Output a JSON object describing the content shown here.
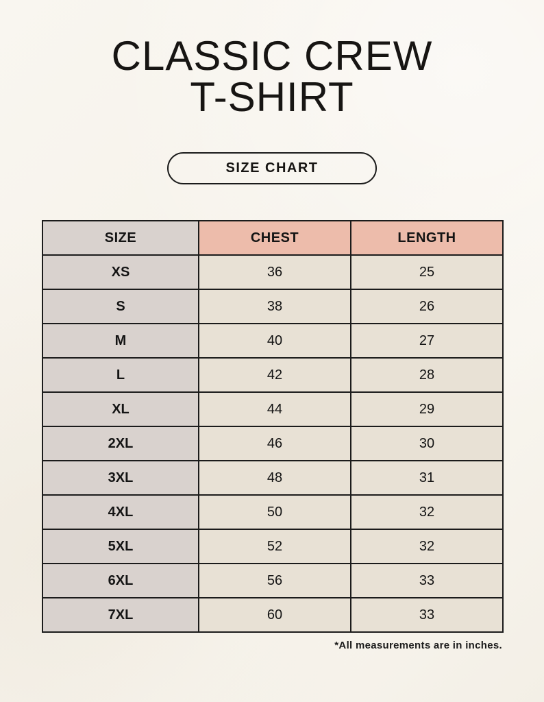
{
  "header": {
    "title_line1": "CLASSIC CREW",
    "title_line2": "T-SHIRT",
    "badge_label": "SIZE CHART"
  },
  "chart_data": {
    "type": "table",
    "title": "CLASSIC CREW T-SHIRT",
    "columns": [
      "SIZE",
      "CHEST",
      "LENGTH"
    ],
    "rows": [
      [
        "XS",
        "36",
        "25"
      ],
      [
        "S",
        "38",
        "26"
      ],
      [
        "M",
        "40",
        "27"
      ],
      [
        "L",
        "42",
        "28"
      ],
      [
        "XL",
        "44",
        "29"
      ],
      [
        "2XL",
        "46",
        "30"
      ],
      [
        "3XL",
        "48",
        "31"
      ],
      [
        "4XL",
        "50",
        "32"
      ],
      [
        "5XL",
        "52",
        "32"
      ],
      [
        "6XL",
        "56",
        "33"
      ],
      [
        "7XL",
        "60",
        "33"
      ]
    ],
    "footnote": "*All measurements are in inches.",
    "units": "inches",
    "layout_hints": {
      "grid": true,
      "header_row": true,
      "rows_count": 11
    }
  },
  "colors": {
    "background": "#f7f3ec",
    "size_column_bg": "#d9d2ce",
    "header_accent_bg": "#edbcab",
    "data_cell_bg": "#e8e1d5",
    "table_border": "#1b1b1b",
    "text": "#141414"
  }
}
